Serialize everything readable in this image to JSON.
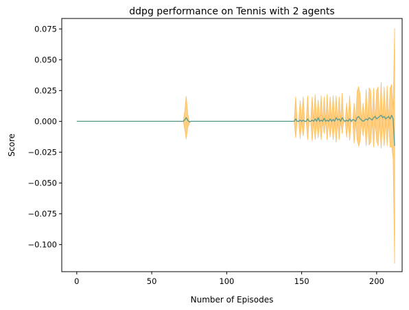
{
  "chart_data": {
    "type": "line",
    "title": "ddpg performance on Tennis with 2 agents",
    "xlabel": "Number of Episodes",
    "ylabel": "Score",
    "xlim": [
      -10,
      217
    ],
    "ylim": [
      -0.122,
      0.0835
    ],
    "xticks": [
      0,
      50,
      100,
      150,
      200
    ],
    "xtick_labels": [
      "0",
      "50",
      "100",
      "150",
      "200"
    ],
    "yticks": [
      0.075,
      0.05,
      0.025,
      0.0,
      -0.025,
      -0.05,
      -0.075,
      -0.1
    ],
    "ytick_labels": [
      "0.075",
      "0.050",
      "0.025",
      "0.000",
      "−0.025",
      "−0.050",
      "−0.075",
      "−0.100"
    ],
    "grid": false,
    "legend": "none",
    "colors": {
      "mean_line": "#5f9e8f",
      "band": "#fdbf5b"
    },
    "series": [
      {
        "x": [
          0,
          70,
          71,
          72,
          73,
          74,
          75,
          76,
          144,
          145,
          146,
          147,
          148,
          149,
          150,
          151,
          152,
          153,
          154,
          155,
          156,
          157,
          158,
          159,
          160,
          161,
          162,
          163,
          164,
          165,
          166,
          167,
          168,
          169,
          170,
          171,
          172,
          173,
          174,
          175,
          176,
          177,
          178,
          179,
          180,
          181,
          182,
          183,
          184,
          185,
          186,
          187,
          188,
          189,
          190,
          191,
          192,
          193,
          194,
          195,
          196,
          197,
          198,
          199,
          200,
          201,
          202,
          203,
          204,
          205,
          206,
          207,
          208,
          209,
          210,
          211,
          212
        ],
        "mean": [
          0.0,
          0.0,
          0.0,
          0.0012,
          0.003,
          0.0008,
          -0.0004,
          0.0,
          0.0,
          0.0,
          0.002,
          0.0,
          0.0,
          0.001,
          0.0,
          0.001,
          0.0,
          0.0,
          0.002,
          0.0,
          0.0,
          0.001,
          0.0,
          0.002,
          0.0,
          0.003,
          0.0,
          0.001,
          0.0,
          0.0025,
          0.0,
          0.001,
          0.0,
          0.002,
          0.0,
          0.0015,
          0.0,
          0.003,
          0.001,
          0.002,
          0.0,
          0.003,
          0.001,
          0.0,
          0.001,
          0.0,
          0.002,
          0.0,
          0.0015,
          0.001,
          0.0,
          0.003,
          0.004,
          0.002,
          0.001,
          0.0,
          0.001,
          0.002,
          0.001,
          0.003,
          0.002,
          0.001,
          0.003,
          0.004,
          0.002,
          0.003,
          0.004,
          0.005,
          0.003,
          0.004,
          0.002,
          0.003,
          0.004,
          0.002,
          0.005,
          0.002,
          -0.02
        ],
        "upper": [
          0.0,
          0.0,
          0.0,
          0.008,
          0.0205,
          0.006,
          0.0,
          0.0,
          0.0,
          0.0,
          0.02,
          0.0,
          0.0,
          0.017,
          0.0,
          0.02,
          0.0,
          0.0,
          0.021,
          0.0,
          0.0,
          0.02,
          0.0,
          0.022,
          0.0,
          0.0175,
          0.0,
          0.021,
          0.0,
          0.02,
          0.0,
          0.022,
          0.0,
          0.02,
          0.0,
          0.021,
          0.0,
          0.021,
          0.0,
          0.02,
          0.0,
          0.023,
          0.0,
          0.0,
          0.015,
          0.0,
          0.021,
          0.0,
          0.0,
          0.015,
          0.0,
          0.0245,
          0.028,
          0.022,
          0.0,
          0.015,
          0.0,
          0.026,
          0.0,
          0.027,
          0.025,
          0.0,
          0.027,
          0.0,
          0.025,
          0.028,
          0.0,
          0.032,
          0.0,
          0.028,
          0.0,
          0.029,
          0.0,
          0.027,
          0.03,
          0.01,
          0.0755
        ],
        "lower": [
          0.0,
          0.0,
          0.0,
          -0.006,
          -0.0145,
          -0.005,
          -0.002,
          0.0,
          0.0,
          0.0,
          -0.0135,
          0.0,
          0.0,
          -0.014,
          0.0,
          -0.012,
          0.0,
          0.0,
          -0.015,
          0.0,
          0.0,
          -0.016,
          0.0,
          -0.015,
          0.0,
          -0.0135,
          0.0,
          -0.015,
          0.0,
          -0.01,
          0.0,
          -0.015,
          0.0,
          -0.013,
          0.0,
          -0.015,
          0.0,
          -0.017,
          0.0,
          -0.015,
          0.0,
          -0.01,
          0.0,
          0.0,
          -0.013,
          0.0,
          -0.0155,
          0.0,
          0.0,
          -0.018,
          0.0,
          -0.015,
          -0.02,
          -0.016,
          0.0,
          -0.012,
          0.0,
          -0.02,
          0.0,
          -0.019,
          -0.017,
          0.0,
          -0.021,
          0.0,
          -0.016,
          -0.02,
          0.0,
          -0.022,
          0.0,
          -0.02,
          0.0,
          -0.02,
          0.0,
          -0.021,
          -0.02,
          -0.03,
          -0.1155
        ]
      }
    ]
  }
}
